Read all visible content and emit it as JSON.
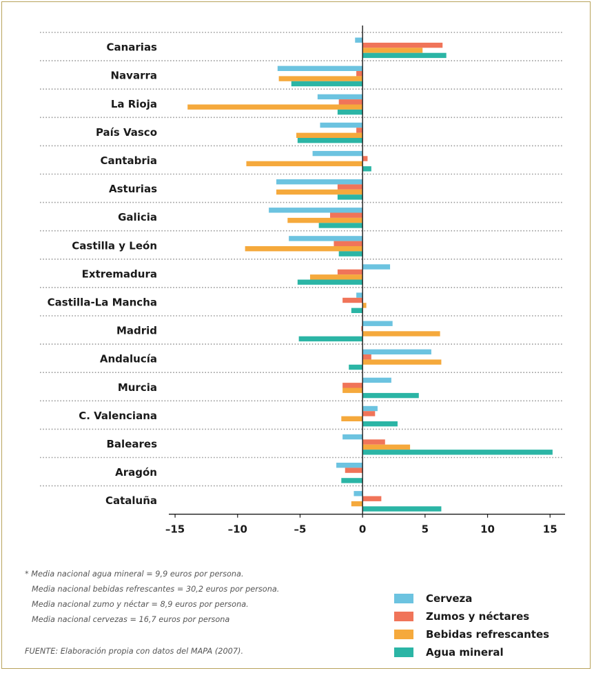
{
  "chart_data": {
    "type": "bar",
    "orientation": "horizontal",
    "categories": [
      "Canarias",
      "Navarra",
      "La Rioja",
      "País Vasco",
      "Cantabria",
      "Asturias",
      "Galicia",
      "Castilla y León",
      "Extremadura",
      "Castilla-La Mancha",
      "Madrid",
      "Andalucía",
      "Murcia",
      "C. Valenciana",
      "Baleares",
      "Aragón",
      "Cataluña"
    ],
    "series": [
      {
        "name": "Cerveza",
        "color": "#6cc3e0",
        "values": [
          -0.6,
          -6.8,
          -3.6,
          -3.4,
          -4.0,
          -6.9,
          -7.5,
          -5.9,
          2.2,
          -0.5,
          2.4,
          5.5,
          2.3,
          1.2,
          -1.6,
          -2.1,
          -0.7
        ]
      },
      {
        "name": "Zumos y néctares",
        "color": "#f07459",
        "values": [
          6.4,
          -0.5,
          -1.9,
          -0.5,
          0.4,
          -2.0,
          -2.6,
          -2.3,
          -2.0,
          -1.6,
          -0.1,
          0.7,
          -1.6,
          1.0,
          1.8,
          -1.4,
          1.5
        ]
      },
      {
        "name": "Bebidas refrescantes",
        "color": "#f5a93c",
        "values": [
          4.8,
          -6.7,
          -14.0,
          -5.3,
          -9.3,
          -6.9,
          -6.0,
          -9.4,
          -4.2,
          0.3,
          6.2,
          6.3,
          -1.6,
          -1.7,
          3.8,
          0.0,
          -0.9
        ]
      },
      {
        "name": "Agua mineral",
        "color": "#2bb5a5",
        "values": [
          6.7,
          -5.7,
          -2.0,
          -5.2,
          0.7,
          -2.0,
          -3.5,
          -1.9,
          -5.2,
          -0.9,
          -5.1,
          -1.1,
          4.5,
          2.8,
          15.2,
          -1.7,
          6.3
        ]
      }
    ],
    "xticks": [
      -15,
      -10,
      -5,
      0,
      5,
      10,
      15
    ],
    "xtick_labels": [
      "–15",
      "–10",
      "–5",
      "0",
      "5",
      "10",
      "15"
    ],
    "xlim": [
      -15.5,
      16.2
    ],
    "xlabel": "",
    "ylabel": "",
    "grid": "dotted row separators",
    "legend_position": "bottom-right"
  },
  "notes": [
    "* Media nacional agua mineral = 9,9 euros por persona.",
    "Media nacional bebidas refrescantes = 30,2 euros por persona.",
    "Media nacional zumo y néctar = 8,9 euros por persona.",
    "Media nacional cervezas = 16,7 euros por persona"
  ],
  "source": "FUENTE: Elaboración propia con datos del MAPA (2007)."
}
